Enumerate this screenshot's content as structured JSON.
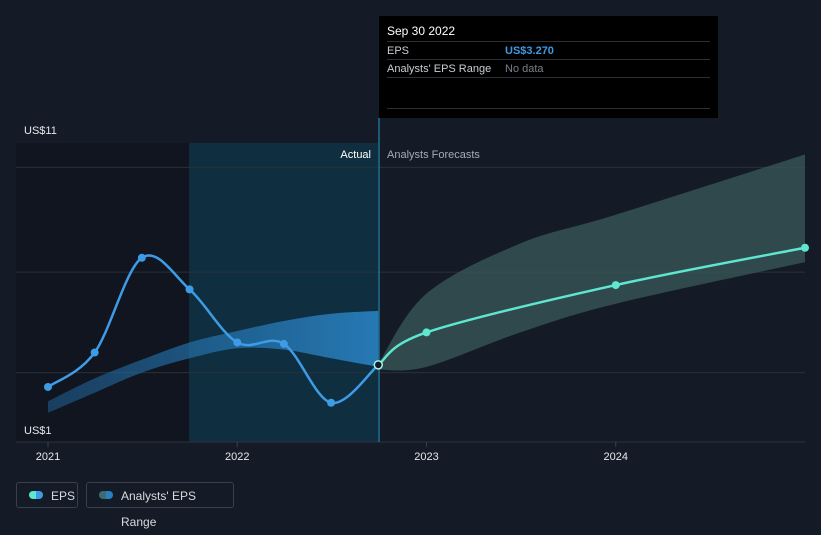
{
  "chart_data": {
    "type": "line",
    "y_axis": {
      "top_label": "US$11",
      "bottom_label": "US$1",
      "ylim": [
        1,
        11
      ]
    },
    "x_axis": {
      "ticks": [
        "2021",
        "2022",
        "2023",
        "2024"
      ]
    },
    "sections": {
      "actual_label": "Actual",
      "forecast_label": "Analysts Forecasts"
    },
    "series": [
      {
        "name": "EPS",
        "points": [
          {
            "x": "2021-01-01",
            "y": 2.5
          },
          {
            "x": "2021-04-01",
            "y": 3.7
          },
          {
            "x": "2021-07-01",
            "y": 7.0
          },
          {
            "x": "2021-10-01",
            "y": 5.9
          },
          {
            "x": "2022-01-01",
            "y": 4.05
          },
          {
            "x": "2022-04-01",
            "y": 4.0
          },
          {
            "x": "2022-07-01",
            "y": 1.95
          },
          {
            "x": "2022-09-30",
            "y": 3.27
          }
        ],
        "forecast_points": [
          {
            "x": "2022-09-30",
            "y": 3.27
          },
          {
            "x": "2023-01-01",
            "y": 4.4
          },
          {
            "x": "2024-01-01",
            "y": 6.05
          },
          {
            "x": "2024-12-31",
            "y": 7.35
          }
        ],
        "color": "#3e9be6",
        "forecast_color": "#5ee6d0"
      },
      {
        "name": "Analysts' EPS Range",
        "historical_band": {
          "x": [
            "2021-01-01",
            "2021-04-01",
            "2021-07-01",
            "2021-10-01",
            "2022-01-01",
            "2022-04-01",
            "2022-07-01",
            "2022-09-30"
          ],
          "low": [
            1.6,
            2.3,
            3.0,
            3.5,
            3.85,
            3.8,
            3.5,
            3.2
          ],
          "high": [
            2.0,
            2.8,
            3.45,
            4.05,
            4.45,
            4.8,
            5.05,
            5.15
          ]
        },
        "forecast_band": {
          "x": [
            "2022-09-30",
            "2023-01-01",
            "2023-07-01",
            "2024-01-01",
            "2024-12-31"
          ],
          "low": [
            3.1,
            3.2,
            4.4,
            5.4,
            6.85
          ],
          "high": [
            3.3,
            5.75,
            7.5,
            8.5,
            10.6
          ]
        },
        "color": "#2a7fc2",
        "forecast_color": "#3a5a5a"
      }
    ]
  },
  "tooltip": {
    "date": "Sep 30 2022",
    "eps_label": "EPS",
    "eps_value": "US$3.270",
    "range_label": "Analysts' EPS Range",
    "range_value": "No data"
  },
  "legend": {
    "eps": "EPS",
    "range": "Analysts' EPS Range"
  }
}
